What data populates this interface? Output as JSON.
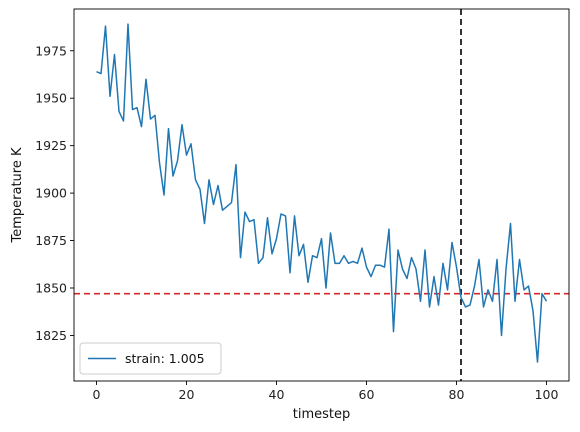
{
  "chart_data": {
    "type": "line",
    "xlabel": "timestep",
    "ylabel": "Temperature K",
    "xlim": [
      -5,
      105
    ],
    "ylim": [
      1801,
      1997
    ],
    "x_ticks": [
      0,
      20,
      40,
      60,
      80,
      100
    ],
    "y_ticks": [
      1825,
      1850,
      1875,
      1900,
      1925,
      1950,
      1975
    ],
    "grid": false,
    "legend_position": "lower-left",
    "series": [
      {
        "name": "strain: 1.005",
        "color": "#1f77b4",
        "x": [
          0,
          1,
          2,
          3,
          4,
          5,
          6,
          7,
          8,
          9,
          10,
          11,
          12,
          13,
          14,
          15,
          16,
          17,
          18,
          19,
          20,
          21,
          22,
          23,
          24,
          25,
          26,
          27,
          28,
          29,
          30,
          31,
          32,
          33,
          34,
          35,
          36,
          37,
          38,
          39,
          40,
          41,
          42,
          43,
          44,
          45,
          46,
          47,
          48,
          49,
          50,
          51,
          52,
          53,
          54,
          55,
          56,
          57,
          58,
          59,
          60,
          61,
          62,
          63,
          64,
          65,
          66,
          67,
          68,
          69,
          70,
          71,
          72,
          73,
          74,
          75,
          76,
          77,
          78,
          79,
          80,
          81,
          82,
          83,
          84,
          85,
          86,
          87,
          88,
          89,
          90,
          91,
          92,
          93,
          94,
          95,
          96,
          97,
          98,
          99,
          100
        ],
        "y": [
          1964,
          1963,
          1988,
          1951,
          1973,
          1943,
          1938,
          1989,
          1944,
          1945,
          1935,
          1960,
          1939,
          1941,
          1916,
          1899,
          1934,
          1909,
          1917,
          1936,
          1920,
          1926,
          1907,
          1902,
          1884,
          1907,
          1894,
          1904,
          1891,
          1893,
          1895,
          1915,
          1866,
          1890,
          1885,
          1886,
          1863,
          1866,
          1887,
          1868,
          1876,
          1889,
          1888,
          1858,
          1888,
          1867,
          1873,
          1853,
          1867,
          1866,
          1876,
          1850,
          1879,
          1863,
          1863,
          1867,
          1863,
          1864,
          1863,
          1871,
          1861,
          1856,
          1862,
          1862,
          1861,
          1881,
          1827,
          1870,
          1860,
          1855,
          1866,
          1860,
          1843,
          1870,
          1840,
          1856,
          1841,
          1863,
          1849,
          1874,
          1861,
          1845,
          1840,
          1841,
          1851,
          1865,
          1840,
          1849,
          1843,
          1865,
          1825,
          1860,
          1884,
          1843,
          1865,
          1849,
          1851,
          1838,
          1811,
          1847,
          1843
        ]
      }
    ],
    "reference_lines": [
      {
        "orientation": "horizontal",
        "value": 1847,
        "color": "#d62728",
        "style": "dashed"
      },
      {
        "orientation": "vertical",
        "value": 81,
        "color": "#000000",
        "style": "dashed"
      }
    ]
  }
}
